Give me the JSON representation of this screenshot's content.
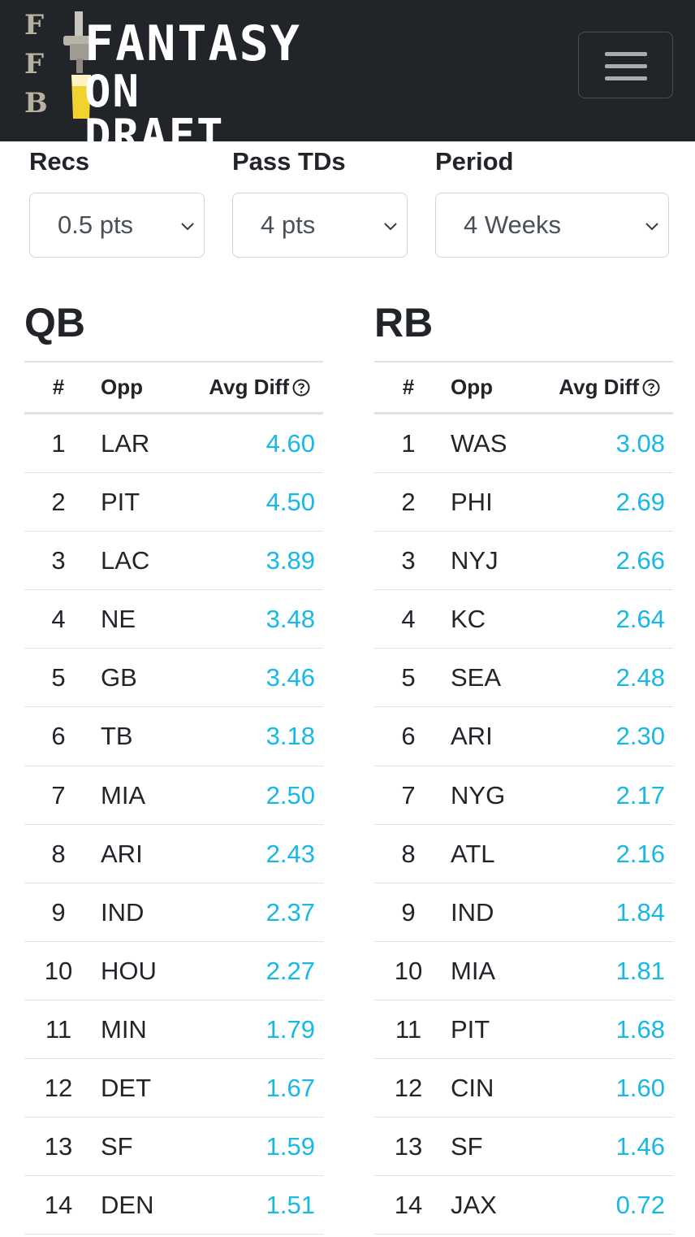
{
  "logo": {
    "side_letters": [
      "F",
      "F",
      "B"
    ],
    "line1": "FANTASY",
    "line2": "ON DRAFT"
  },
  "menu_icon": "hamburger-icon",
  "filters": [
    {
      "label": "Recs",
      "value": "0.5 pts"
    },
    {
      "label": "Pass TDs",
      "value": "4 pts"
    },
    {
      "label": "Period",
      "value": "4 Weeks"
    }
  ],
  "columns": {
    "num": "#",
    "opp": "Opp",
    "avg": "Avg Diff"
  },
  "help_icon": "question-circle-icon",
  "value_color": "#17b8e6",
  "tables": [
    {
      "title": "QB",
      "rows": [
        {
          "num": "1",
          "opp": "LAR",
          "avg": "4.60"
        },
        {
          "num": "2",
          "opp": "PIT",
          "avg": "4.50"
        },
        {
          "num": "3",
          "opp": "LAC",
          "avg": "3.89"
        },
        {
          "num": "4",
          "opp": "NE",
          "avg": "3.48"
        },
        {
          "num": "5",
          "opp": "GB",
          "avg": "3.46"
        },
        {
          "num": "6",
          "opp": "TB",
          "avg": "3.18"
        },
        {
          "num": "7",
          "opp": "MIA",
          "avg": "2.50"
        },
        {
          "num": "8",
          "opp": "ARI",
          "avg": "2.43"
        },
        {
          "num": "9",
          "opp": "IND",
          "avg": "2.37"
        },
        {
          "num": "10",
          "opp": "HOU",
          "avg": "2.27"
        },
        {
          "num": "11",
          "opp": "MIN",
          "avg": "1.79"
        },
        {
          "num": "12",
          "opp": "DET",
          "avg": "1.67"
        },
        {
          "num": "13",
          "opp": "SF",
          "avg": "1.59"
        },
        {
          "num": "14",
          "opp": "DEN",
          "avg": "1.51"
        }
      ]
    },
    {
      "title": "RB",
      "rows": [
        {
          "num": "1",
          "opp": "WAS",
          "avg": "3.08"
        },
        {
          "num": "2",
          "opp": "PHI",
          "avg": "2.69"
        },
        {
          "num": "3",
          "opp": "NYJ",
          "avg": "2.66"
        },
        {
          "num": "4",
          "opp": "KC",
          "avg": "2.64"
        },
        {
          "num": "5",
          "opp": "SEA",
          "avg": "2.48"
        },
        {
          "num": "6",
          "opp": "ARI",
          "avg": "2.30"
        },
        {
          "num": "7",
          "opp": "NYG",
          "avg": "2.17"
        },
        {
          "num": "8",
          "opp": "ATL",
          "avg": "2.16"
        },
        {
          "num": "9",
          "opp": "IND",
          "avg": "1.84"
        },
        {
          "num": "10",
          "opp": "MIA",
          "avg": "1.81"
        },
        {
          "num": "11",
          "opp": "PIT",
          "avg": "1.68"
        },
        {
          "num": "12",
          "opp": "CIN",
          "avg": "1.60"
        },
        {
          "num": "13",
          "opp": "SF",
          "avg": "1.46"
        },
        {
          "num": "14",
          "opp": "JAX",
          "avg": "0.72"
        }
      ]
    }
  ]
}
